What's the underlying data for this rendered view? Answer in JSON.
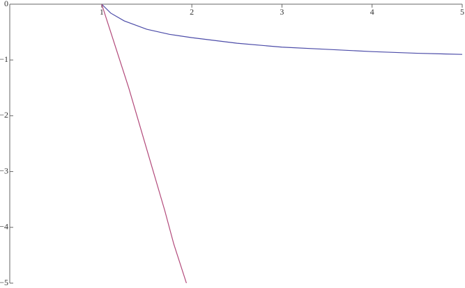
{
  "chart_data": {
    "type": "line",
    "xlim": [
      -0.02,
      5
    ],
    "ylim": [
      -5,
      0
    ],
    "xticks": [
      1,
      2,
      3,
      4,
      5
    ],
    "yticks": [
      {
        "value": 0,
        "label": "0"
      },
      {
        "value": -1,
        "label": "−1"
      },
      {
        "value": -2,
        "label": "−2"
      },
      {
        "value": -3,
        "label": "−3"
      },
      {
        "value": -4,
        "label": "−4"
      },
      {
        "value": -5,
        "label": "−5"
      }
    ],
    "series": [
      {
        "color": "#4b4ba8",
        "x": [
          1,
          1.1,
          1.25,
          1.5,
          1.75,
          2,
          2.5,
          3,
          3.5,
          4,
          4.5,
          5
        ],
        "values": [
          0,
          -0.16,
          -0.3,
          -0.45,
          -0.54,
          -0.6,
          -0.7,
          -0.77,
          -0.81,
          -0.85,
          -0.88,
          -0.9
        ]
      },
      {
        "color": "#b2497a",
        "x": [
          1,
          1.1,
          1.2,
          1.3,
          1.4,
          1.5,
          1.6,
          1.7,
          1.8,
          1.94
        ],
        "values": [
          0,
          -0.5,
          -1.0,
          -1.5,
          -2.05,
          -2.6,
          -3.15,
          -3.7,
          -4.3,
          -5
        ]
      }
    ]
  }
}
